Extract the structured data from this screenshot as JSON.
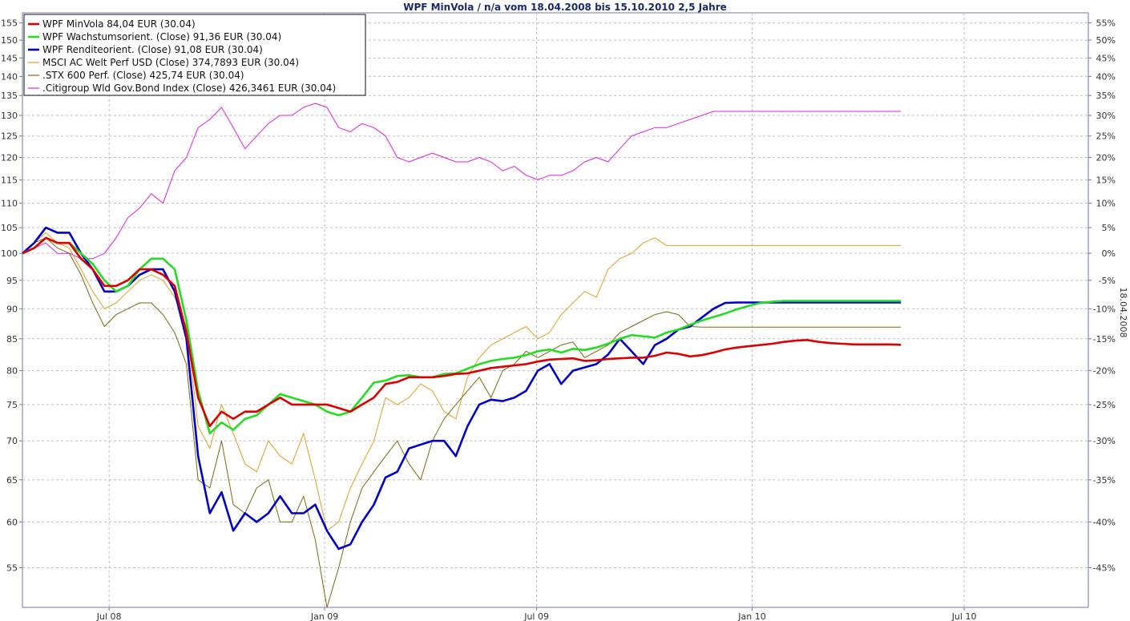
{
  "chart_data": {
    "type": "line",
    "title": "WPF MinVola / n/a vom 18.04.2008 bis 15.10.2010 2,5 Jahre",
    "side_label": "18.04.2008",
    "x_ticks": [
      "Jul 08",
      "Jan 09",
      "Jul 09",
      "Jan 10",
      "Jul 10"
    ],
    "x_tick_dates": [
      "2008-07-01",
      "2009-01-01",
      "2009-07-01",
      "2010-01-01",
      "2010-07-01"
    ],
    "xlim": [
      "2008-04-18",
      "2010-10-15"
    ],
    "y_ticks_left": [
      55,
      60,
      65,
      70,
      75,
      80,
      85,
      90,
      95,
      100,
      105,
      110,
      115,
      120,
      125,
      130,
      135,
      140,
      145,
      150,
      155
    ],
    "y_ticks_right": [
      "-45%",
      "-40%",
      "-35%",
      "-30%",
      "-25%",
      "-20%",
      "-15%",
      "-10%",
      "-5%",
      "0%",
      "5%",
      "10%",
      "15%",
      "20%",
      "25%",
      "30%",
      "35%",
      "40%",
      "45%",
      "50%",
      "55%"
    ],
    "ylim": [
      51,
      158
    ],
    "y_scale": "log",
    "grid": true,
    "legend_position": "top-left",
    "x": [
      "2008-04-18",
      "2008-04-28",
      "2008-05-08",
      "2008-05-18",
      "2008-05-28",
      "2008-06-07",
      "2008-06-17",
      "2008-06-27",
      "2008-07-07",
      "2008-07-17",
      "2008-07-27",
      "2008-08-06",
      "2008-08-16",
      "2008-08-26",
      "2008-09-05",
      "2008-09-15",
      "2008-09-25",
      "2008-10-05",
      "2008-10-15",
      "2008-10-25",
      "2008-11-04",
      "2008-11-14",
      "2008-11-24",
      "2008-12-04",
      "2008-12-14",
      "2008-12-24",
      "2009-01-03",
      "2009-01-13",
      "2009-01-23",
      "2009-02-02",
      "2009-02-12",
      "2009-02-22",
      "2009-03-04",
      "2009-03-14",
      "2009-03-24",
      "2009-04-03",
      "2009-04-13",
      "2009-04-23",
      "2009-05-03",
      "2009-05-13",
      "2009-05-23",
      "2009-06-02",
      "2009-06-12",
      "2009-06-22",
      "2009-07-02",
      "2009-07-12",
      "2009-07-22",
      "2009-08-01",
      "2009-08-11",
      "2009-08-21",
      "2009-08-31",
      "2009-09-10",
      "2009-09-20",
      "2009-09-30",
      "2009-10-10",
      "2009-10-20",
      "2009-10-30",
      "2009-11-09",
      "2009-11-19",
      "2009-11-29",
      "2009-12-09",
      "2009-12-19",
      "2009-12-29",
      "2010-01-08",
      "2010-01-18",
      "2010-01-28",
      "2010-02-07",
      "2010-02-17",
      "2010-02-27",
      "2010-03-09",
      "2010-03-19",
      "2010-03-29",
      "2010-04-08",
      "2010-04-18",
      "2010-04-28",
      "2010-05-08"
    ],
    "series": [
      {
        "name": "WPF MinVola 84,04 EUR (30.04)",
        "color": "#dd0000",
        "width": 2.6,
        "values": [
          100,
          101,
          103,
          102,
          102,
          99,
          97,
          94,
          94,
          95,
          97,
          97,
          96,
          94,
          86,
          76,
          72,
          74,
          73,
          74,
          74,
          75,
          76,
          75,
          75,
          75,
          75,
          74.5,
          74,
          75,
          76,
          78,
          78.3,
          79,
          79,
          79,
          79.2,
          79.5,
          79.6,
          80,
          80.4,
          80.6,
          80.8,
          81,
          81.4,
          81.7,
          81.8,
          81.9,
          81.5,
          81.6,
          81.8,
          81.9,
          82,
          82,
          82.3,
          82.8,
          82.6,
          82.2,
          82.4,
          82.8,
          83.3,
          83.6,
          83.8,
          84,
          84.2,
          84.5,
          84.7,
          84.8,
          84.5,
          84.3,
          84.2,
          84.1,
          84.1,
          84.1,
          84.1,
          84.04
        ]
      },
      {
        "name": "WPF Wachstumsorient. (Close) 91,36 EUR (30.04)",
        "color": "#22dd22",
        "width": 2.6,
        "values": [
          100,
          101,
          103,
          102,
          102,
          100,
          98,
          95,
          93,
          94,
          97,
          99,
          99,
          97,
          88,
          77,
          71,
          72.5,
          71.5,
          73,
          73.5,
          75,
          76.5,
          76,
          75.5,
          75,
          74,
          73.5,
          74,
          76,
          78.2,
          78.5,
          79.2,
          79.3,
          79,
          79,
          79.5,
          79.6,
          80.3,
          81,
          81.5,
          81.8,
          82,
          82.4,
          83,
          83.3,
          82.8,
          83.4,
          83.2,
          83.6,
          84.2,
          85,
          85.6,
          85.4,
          85.2,
          86,
          86.5,
          87.3,
          88,
          88.6,
          89.2,
          89.9,
          90.5,
          91,
          91.2,
          91.36,
          91.36,
          91.36,
          91.36,
          91.36,
          91.36,
          91.36,
          91.36,
          91.36,
          91.36,
          91.36
        ]
      },
      {
        "name": "WPF Renditeorient. (Close) 91,08 EUR (30.04)",
        "color": "#0000cc",
        "width": 2.6,
        "values": [
          100,
          102,
          105,
          104,
          104,
          100,
          97,
          93,
          93,
          94,
          96,
          97,
          97,
          93,
          85,
          68,
          61,
          63.5,
          59,
          61,
          60,
          61,
          63,
          61,
          61,
          62,
          59,
          57,
          57.5,
          60,
          62,
          65.3,
          66,
          69,
          69.5,
          70,
          70,
          68,
          72,
          75,
          75.7,
          75.5,
          76,
          77,
          80,
          81,
          78,
          80,
          80.5,
          81,
          82.5,
          85,
          83,
          81,
          84,
          85,
          86.5,
          87,
          88.5,
          90,
          91,
          91.08,
          91.08,
          91.08,
          91.08,
          91.08,
          91.08,
          91.08,
          91.08,
          91.08,
          91.08,
          91.08,
          91.08,
          91.08,
          91.08,
          91.08
        ]
      },
      {
        "name": "MSCI AC Welt Perf USD (Close) 374,7893 EUR (30.04)",
        "color": "#e0a020",
        "width": 1,
        "values": [
          100,
          102,
          104,
          102,
          101,
          97,
          93,
          90,
          91,
          93,
          95,
          96,
          95,
          92,
          87,
          72,
          69,
          75,
          71,
          67,
          66,
          70,
          68,
          67,
          71,
          65,
          59,
          60,
          64,
          67,
          70,
          76,
          75,
          76,
          78,
          77,
          74,
          73,
          79,
          82,
          84,
          85,
          86,
          87,
          85,
          86,
          89,
          91,
          93,
          92,
          97,
          99,
          100,
          102,
          103,
          101.5,
          101.5,
          101.5,
          101.5,
          101.5,
          101.5,
          101.5,
          101.5,
          101.5,
          101.5,
          101.5,
          101.5,
          101.5,
          101.5,
          101.5,
          101.5,
          101.5,
          101.5,
          101.5,
          101.5,
          101.5
        ]
      },
      {
        "name": ".STX 600 Perf. (Close) 425,74 EUR (30.04)",
        "color": "#7a6a10",
        "width": 1,
        "values": [
          100,
          102,
          103,
          101,
          100,
          96,
          91,
          87,
          89,
          90,
          91,
          91,
          89,
          86,
          81,
          65,
          64,
          70,
          62,
          61,
          64,
          65,
          60,
          60,
          63,
          58,
          51,
          55,
          60,
          64,
          66,
          68,
          70,
          67,
          65,
          70,
          73,
          75,
          77,
          79,
          76,
          80,
          81,
          83,
          82,
          83,
          84,
          84.5,
          82,
          83,
          84,
          86,
          87,
          88,
          89,
          89.5,
          89,
          87,
          86.9,
          86.9,
          86.9,
          86.9,
          86.9,
          86.9,
          86.9,
          86.9,
          86.9,
          86.9,
          86.9,
          86.9,
          86.9,
          86.9,
          86.9,
          86.9,
          86.9,
          86.9
        ]
      },
      {
        "name": ".Citigroup Wld Gov.Bond Index (Close) 426,3461 EUR (30.04)",
        "color": "#e020e0",
        "width": 1,
        "values": [
          100,
          101,
          102,
          100,
          100,
          99,
          99,
          100,
          103,
          107,
          109,
          112,
          110,
          117,
          120,
          127,
          129,
          132,
          127,
          122,
          125,
          128,
          130,
          130,
          132,
          133,
          132,
          127,
          126,
          128,
          127,
          125,
          120,
          119,
          120,
          121,
          120,
          119,
          119,
          120,
          119,
          117,
          118,
          116,
          115,
          116,
          116,
          117,
          119,
          120,
          119,
          122,
          125,
          126,
          127,
          127,
          128,
          129,
          130,
          131,
          131,
          131,
          131,
          131,
          131,
          131,
          131,
          131,
          131,
          131,
          131,
          131,
          131,
          131,
          131,
          131
        ]
      }
    ]
  }
}
